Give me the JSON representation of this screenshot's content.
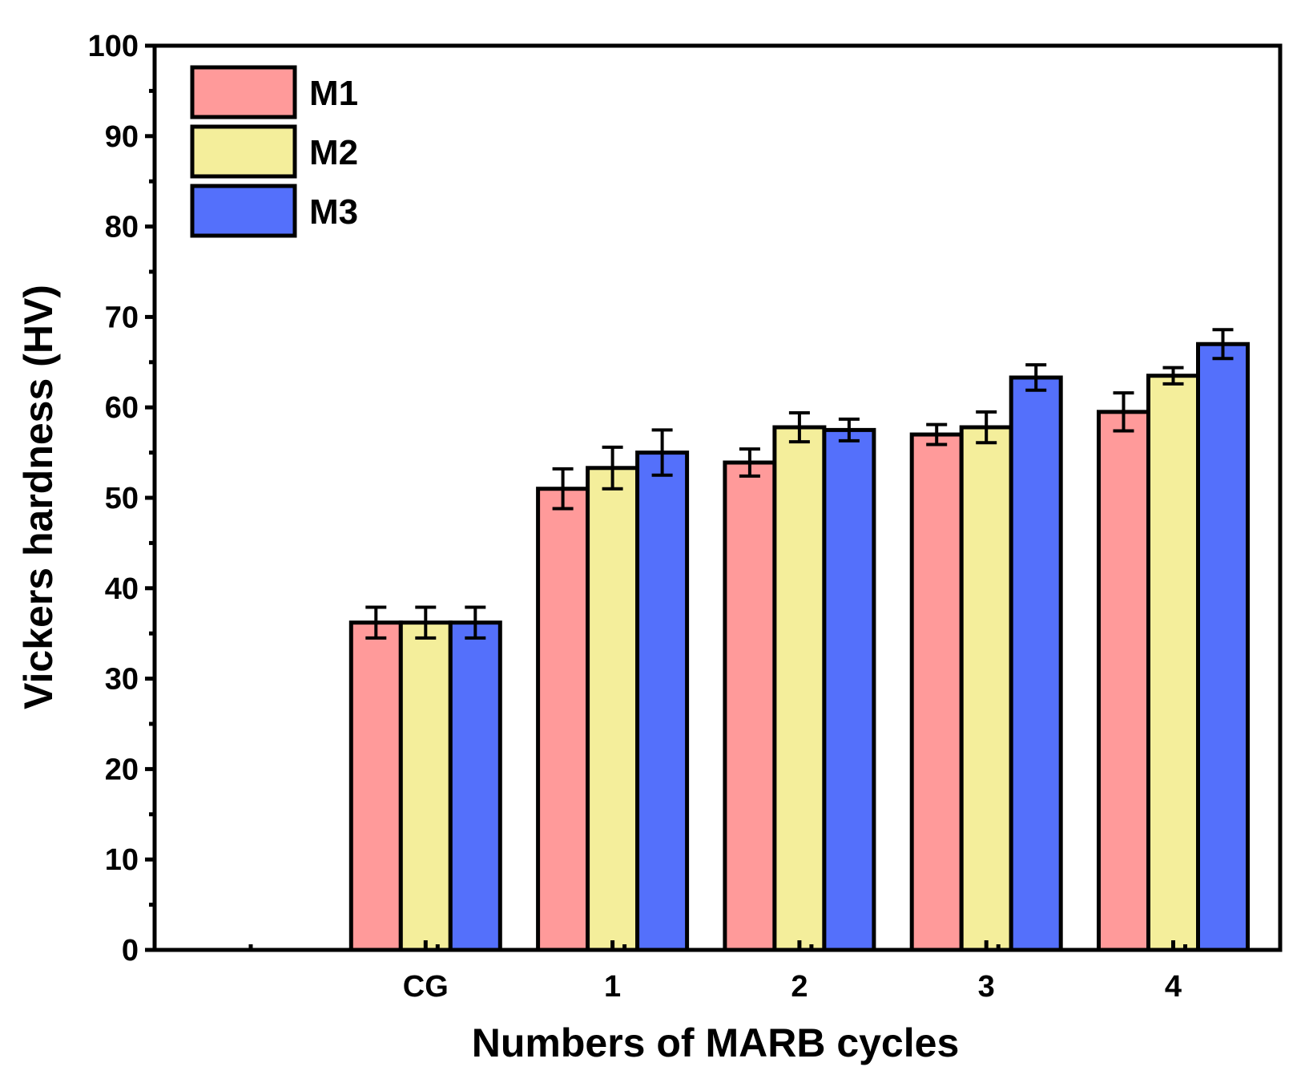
{
  "chart_data": {
    "type": "bar",
    "title": "",
    "xlabel": "Numbers of MARB cycles",
    "ylabel": "Vickers hardness (HV)",
    "categories": [
      "CG",
      "1",
      "2",
      "3",
      "4"
    ],
    "ylim": [
      0,
      100
    ],
    "yticks": [
      0,
      10,
      20,
      30,
      40,
      50,
      60,
      70,
      80,
      90,
      100
    ],
    "ytick_labels": [
      "0",
      "10",
      "20",
      "30",
      "40",
      "50",
      "60",
      "70",
      "80",
      "90",
      "100"
    ],
    "grid": false,
    "legend_position": "top-left",
    "series": [
      {
        "name": "M1",
        "color": "#ff9a9a",
        "values": [
          36.2,
          51.0,
          53.9,
          57.0,
          59.5
        ],
        "errors": [
          1.7,
          2.2,
          1.5,
          1.1,
          2.1
        ]
      },
      {
        "name": "M2",
        "color": "#f4ee9b",
        "values": [
          36.2,
          53.3,
          57.8,
          57.8,
          63.5
        ],
        "errors": [
          1.7,
          2.3,
          1.6,
          1.7,
          0.9
        ]
      },
      {
        "name": "M3",
        "color": "#5470fb",
        "values": [
          36.2,
          55.0,
          57.5,
          63.3,
          67.0
        ],
        "errors": [
          1.7,
          2.5,
          1.2,
          1.4,
          1.6
        ]
      }
    ]
  }
}
